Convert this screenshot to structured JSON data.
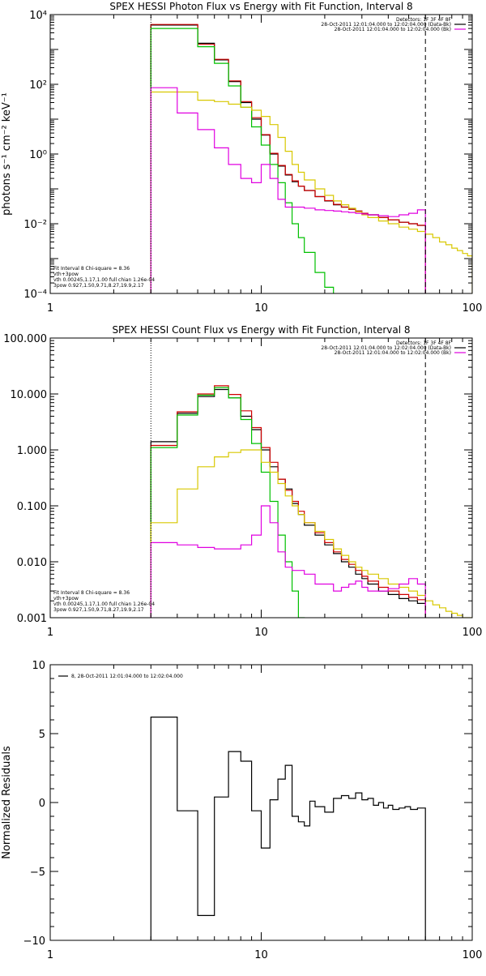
{
  "chart_data": [
    {
      "type": "line",
      "title": "SPEX HESSI Photon Flux vs Energy with Fit Function, Interval 8",
      "xlabel": "",
      "ylabel": "photons s⁻¹ cm⁻² keV⁻¹",
      "xscale": "log",
      "yscale": "log",
      "xlim": [
        1,
        100
      ],
      "ylim": [
        0.0001,
        10000
      ],
      "x_ticks": [
        "1",
        "10",
        "100"
      ],
      "y_ticks": [
        "10⁻⁴",
        "10⁻²",
        "10⁰",
        "10²",
        "10⁴"
      ],
      "vlines": [
        {
          "x": 3.0,
          "style": "dotted"
        },
        {
          "x": 60.0,
          "style": "dashed"
        }
      ],
      "legend_top_right": [
        {
          "text": "Detectors: 1F 3F 4F 8F",
          "color": ""
        },
        {
          "text": "28-Oct-2011 12:01:04.000 to 12:02:04.000 (Data-Bk)",
          "color": "#000000"
        },
        {
          "text": "28-Oct-2011 12:01:04.000 to 12:02:04.000 (Bk)",
          "color": "#e000e0"
        }
      ],
      "legend_bottom_left": [
        {
          "text": "Fit Interval 8   Chi-square = 8.36",
          "color": ""
        },
        {
          "text": "vth+3pow",
          "color": "#d00000"
        },
        {
          "text": "vth 0.00245,1.17,1.00  full chian 1.26e-04",
          "color": "#00c000"
        },
        {
          "text": "3pow 0.927,1.50,9.71,8.27,19.9,2.17",
          "color": "#d8c800"
        }
      ],
      "series": [
        {
          "name": "Data-Bk",
          "color": "#000000",
          "bins": [
            3.0,
            4.0,
            5.0,
            6.0,
            7.0,
            8.0,
            9.0,
            10.0,
            11.0,
            12.0,
            13.0,
            14.0,
            15.0,
            16.0,
            18.0,
            20.0,
            22.0,
            24.0,
            26.0,
            28.0,
            30.0,
            32.0,
            36.0,
            40.0,
            45.0,
            50.0,
            55.0,
            60.0
          ],
          "values": [
            5000,
            5000,
            1500,
            500,
            120,
            30,
            10,
            3.5,
            1.0,
            0.45,
            0.25,
            0.16,
            0.12,
            0.09,
            0.06,
            0.045,
            0.035,
            0.03,
            0.026,
            0.023,
            0.02,
            0.018,
            0.015,
            0.013,
            0.011,
            0.01,
            0.009
          ]
        },
        {
          "name": "vth+3pow",
          "color": "#d00000",
          "bins": [
            3.0,
            4.0,
            5.0,
            6.0,
            7.0,
            8.0,
            9.0,
            10.0,
            11.0,
            12.0,
            13.0,
            14.0,
            15.0,
            16.0,
            18.0,
            20.0,
            22.0,
            24.0,
            26.0,
            28.0,
            30.0,
            32.0,
            36.0,
            40.0,
            45.0,
            50.0,
            55.0,
            60.0
          ],
          "values": [
            5200,
            5200,
            1400,
            520,
            125,
            32,
            11,
            3.6,
            1.05,
            0.47,
            0.26,
            0.17,
            0.12,
            0.09,
            0.06,
            0.046,
            0.036,
            0.03,
            0.026,
            0.023,
            0.02,
            0.018,
            0.015,
            0.013,
            0.011,
            0.01,
            0.009
          ]
        },
        {
          "name": "vth",
          "color": "#00c000",
          "bins": [
            3.0,
            4.0,
            5.0,
            6.0,
            7.0,
            8.0,
            9.0,
            10.0,
            11.0,
            12.0,
            13.0,
            14.0,
            15.0,
            16.0,
            18.0,
            20.0,
            22.0
          ],
          "values": [
            4000,
            4000,
            1200,
            400,
            90,
            22,
            6,
            1.8,
            0.5,
            0.15,
            0.04,
            0.01,
            0.004,
            0.0015,
            0.0004,
            0.00015
          ]
        },
        {
          "name": "3pow",
          "color": "#d8c800",
          "bins": [
            3.0,
            4.0,
            5.0,
            6.0,
            7.0,
            8.0,
            9.0,
            10.0,
            11.0,
            12.0,
            13.0,
            14.0,
            15.0,
            16.0,
            18.0,
            20.0,
            22.0,
            24.0,
            26.0,
            28.0,
            30.0,
            32.0,
            36.0,
            40.0,
            45.0,
            50.0,
            55.0,
            60.0,
            65.0,
            70.0,
            75.0,
            80.0,
            85.0,
            90.0,
            95.0,
            100.0
          ],
          "values": [
            60,
            60,
            35,
            32,
            27,
            22,
            18,
            12,
            7,
            3,
            1.2,
            0.5,
            0.3,
            0.18,
            0.1,
            0.065,
            0.045,
            0.035,
            0.028,
            0.022,
            0.018,
            0.015,
            0.012,
            0.01,
            0.008,
            0.007,
            0.006,
            0.005,
            0.004,
            0.003,
            0.0025,
            0.002,
            0.0017,
            0.0014,
            0.0012
          ]
        },
        {
          "name": "Bk",
          "color": "#e000e0",
          "bins": [
            3.0,
            4.0,
            5.0,
            6.0,
            7.0,
            8.0,
            9.0,
            10.0,
            11.0,
            12.0,
            13.0,
            14.0,
            16.0,
            18.0,
            20.0,
            22.0,
            24.0,
            26.0,
            28.0,
            30.0,
            32.0,
            36.0,
            40.0,
            45.0,
            50.0,
            55.0,
            60.0
          ],
          "values": [
            80,
            15,
            5,
            1.5,
            0.5,
            0.2,
            0.15,
            0.5,
            0.2,
            0.05,
            0.03,
            0.03,
            0.028,
            0.025,
            0.024,
            0.023,
            0.022,
            0.021,
            0.02,
            0.019,
            0.018,
            0.017,
            0.016,
            0.018,
            0.02,
            0.025
          ]
        }
      ]
    },
    {
      "type": "line",
      "title": "SPEX HESSI Count Flux vs Energy with Fit Function, Interval 8",
      "xlabel": "",
      "ylabel": "",
      "xscale": "log",
      "yscale": "log",
      "xlim": [
        1,
        100
      ],
      "ylim": [
        0.001,
        100
      ],
      "x_ticks": [
        "1",
        "10",
        "100"
      ],
      "y_ticks": [
        "0.001",
        "0.010",
        "0.100",
        "1.000",
        "10.000",
        "100.000"
      ],
      "vlines": [
        {
          "x": 3.0,
          "style": "dotted"
        },
        {
          "x": 60.0,
          "style": "dashed"
        }
      ],
      "legend_top_right": [
        {
          "text": "Detectors: 1F 3F 4F 8F",
          "color": ""
        },
        {
          "text": "28-Oct-2011 12:01:04.000 to 12:02:04.000 (Data-Bk)",
          "color": "#000000"
        },
        {
          "text": "28-Oct-2011 12:01:04.000 to 12:02:04.000 (Bk)",
          "color": "#e000e0"
        }
      ],
      "legend_bottom_left": [
        {
          "text": "Fit Interval 8   Chi-square = 8.36",
          "color": ""
        },
        {
          "text": "vth+3pow",
          "color": "#d00000"
        },
        {
          "text": "vth 0.00245,1.17,1.00  full chian 1.26e-04",
          "color": "#00c000"
        },
        {
          "text": "3pow 0.927,1.50,9.71,8.27,19.9,2.17",
          "color": "#d8c800"
        }
      ],
      "series": [
        {
          "name": "Data-Bk",
          "color": "#000000",
          "bins": [
            3.0,
            4.0,
            5.0,
            6.0,
            7.0,
            8.0,
            9.0,
            10.0,
            11.0,
            12.0,
            13.0,
            14.0,
            15.0,
            16.0,
            18.0,
            20.0,
            22.0,
            24.0,
            26.0,
            28.0,
            30.0,
            32.0,
            36.0,
            40.0,
            45.0,
            50.0,
            55.0,
            60.0
          ],
          "values": [
            1.4,
            4.5,
            9,
            12,
            8.5,
            4,
            2.3,
            1.0,
            0.5,
            0.3,
            0.2,
            0.11,
            0.07,
            0.045,
            0.03,
            0.02,
            0.014,
            0.01,
            0.008,
            0.006,
            0.005,
            0.004,
            0.003,
            0.0026,
            0.0022,
            0.002,
            0.0018
          ]
        },
        {
          "name": "vth+3pow",
          "color": "#d00000",
          "bins": [
            3.0,
            4.0,
            5.0,
            6.0,
            7.0,
            8.0,
            9.0,
            10.0,
            11.0,
            12.0,
            13.0,
            14.0,
            15.0,
            16.0,
            18.0,
            20.0,
            22.0,
            24.0,
            26.0,
            28.0,
            30.0,
            32.0,
            36.0,
            40.0,
            45.0,
            50.0,
            55.0,
            60.0
          ],
          "values": [
            1.2,
            4.8,
            10,
            14,
            9.8,
            5,
            2.5,
            1.1,
            0.6,
            0.3,
            0.19,
            0.12,
            0.08,
            0.05,
            0.033,
            0.022,
            0.015,
            0.011,
            0.009,
            0.007,
            0.0055,
            0.0045,
            0.0035,
            0.003,
            0.0026,
            0.0023,
            0.0021
          ]
        },
        {
          "name": "vth",
          "color": "#00c000",
          "bins": [
            3.0,
            4.0,
            5.0,
            6.0,
            7.0,
            8.0,
            9.0,
            10.0,
            11.0,
            12.0,
            13.0,
            14.0,
            15.0,
            16.0
          ],
          "values": [
            1.1,
            4.2,
            9.5,
            13,
            8.5,
            3.5,
            1.3,
            0.4,
            0.12,
            0.03,
            0.01,
            0.003,
            0.001
          ]
        },
        {
          "name": "3pow",
          "color": "#d8c800",
          "bins": [
            3.0,
            4.0,
            5.0,
            6.0,
            7.0,
            8.0,
            9.0,
            10.0,
            11.0,
            12.0,
            13.0,
            14.0,
            15.0,
            16.0,
            18.0,
            20.0,
            22.0,
            24.0,
            26.0,
            28.0,
            30.0,
            32.0,
            36.0,
            40.0,
            45.0,
            50.0,
            55.0,
            60.0,
            65.0,
            70.0,
            75.0,
            80.0,
            85.0,
            90.0,
            95.0,
            100.0
          ],
          "values": [
            0.05,
            0.2,
            0.5,
            0.75,
            0.9,
            1.0,
            1.0,
            0.6,
            0.4,
            0.25,
            0.15,
            0.1,
            0.07,
            0.05,
            0.035,
            0.025,
            0.017,
            0.013,
            0.01,
            0.008,
            0.007,
            0.006,
            0.005,
            0.004,
            0.0035,
            0.003,
            0.0025,
            0.002,
            0.0017,
            0.0015,
            0.0013,
            0.0012,
            0.0011,
            0.001,
            0.001
          ]
        },
        {
          "name": "Bk",
          "color": "#e000e0",
          "bins": [
            3.0,
            4.0,
            5.0,
            6.0,
            7.0,
            8.0,
            9.0,
            10.0,
            11.0,
            12.0,
            13.0,
            14.0,
            16.0,
            18.0,
            20.0,
            22.0,
            24.0,
            26.0,
            28.0,
            30.0,
            32.0,
            36.0,
            40.0,
            45.0,
            50.0,
            55.0,
            60.0
          ],
          "values": [
            0.022,
            0.02,
            0.018,
            0.017,
            0.017,
            0.02,
            0.03,
            0.1,
            0.05,
            0.015,
            0.008,
            0.007,
            0.006,
            0.004,
            0.004,
            0.003,
            0.0035,
            0.004,
            0.0045,
            0.0035,
            0.003,
            0.003,
            0.0033,
            0.004,
            0.005,
            0.004
          ]
        }
      ]
    },
    {
      "type": "line",
      "title": "",
      "xlabel": "",
      "ylabel": "Normalized Residuals",
      "xscale": "log",
      "yscale": "linear",
      "xlim": [
        1,
        100
      ],
      "ylim": [
        -10,
        10
      ],
      "x_ticks": [
        "1",
        "10",
        "100"
      ],
      "y_ticks": [
        "−10",
        "−5",
        "0",
        "5",
        "10"
      ],
      "legend_top_left": [
        {
          "text": "8, 28-Oct-2011 12:01:04.000 to 12:02:04.000",
          "color": "#000000"
        }
      ],
      "series": [
        {
          "name": "",
          "color": "#000000",
          "bins": [
            3.0,
            4.0,
            5.0,
            6.0,
            7.0,
            8.0,
            9.0,
            10.0,
            11.0,
            12.0,
            13.0,
            14.0,
            15.0,
            16.0,
            17.0,
            18.0,
            20.0,
            22.0,
            24.0,
            26.0,
            28.0,
            30.0,
            32.0,
            34.0,
            36.0,
            38.0,
            40.0,
            42.0,
            45.0,
            48.0,
            51.0,
            55.0,
            60.0
          ],
          "values": [
            6.2,
            -0.6,
            -8.2,
            0.4,
            3.7,
            3.0,
            -0.6,
            -3.3,
            0.2,
            1.7,
            2.7,
            -1.0,
            -1.4,
            -1.7,
            0.1,
            -0.3,
            -0.7,
            0.3,
            0.5,
            0.3,
            0.7,
            0.2,
            0.3,
            -0.2,
            0.0,
            -0.4,
            -0.2,
            -0.5,
            -0.4,
            -0.3,
            -0.5,
            -0.4
          ]
        }
      ]
    }
  ]
}
